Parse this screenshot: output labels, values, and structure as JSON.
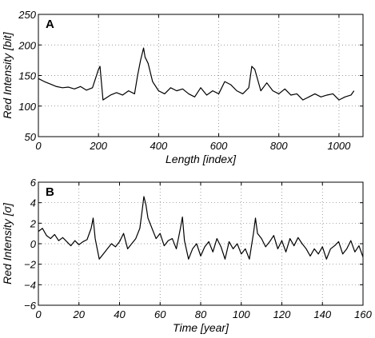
{
  "chart_data": [
    {
      "type": "line",
      "panel_label": "A",
      "xlabel": "Length [index]",
      "ylabel": "Red Intensity [bit]",
      "xlim": [
        0,
        1080
      ],
      "ylim": [
        50,
        250
      ],
      "xticks": [
        0,
        200,
        400,
        600,
        800,
        1000
      ],
      "yticks": [
        50,
        100,
        150,
        200,
        250
      ],
      "grid": true,
      "series": [
        {
          "x": [
            0,
            20,
            40,
            60,
            80,
            100,
            120,
            140,
            160,
            180,
            200,
            205,
            215,
            240,
            260,
            280,
            300,
            320,
            330,
            340,
            345,
            350,
            355,
            365,
            380,
            400,
            420,
            440,
            460,
            480,
            500,
            520,
            540,
            560,
            580,
            600,
            620,
            640,
            660,
            680,
            700,
            710,
            720,
            740,
            760,
            780,
            800,
            820,
            840,
            860,
            880,
            900,
            920,
            940,
            960,
            980,
            1000,
            1020,
            1040,
            1050
          ],
          "y": [
            145,
            140,
            136,
            132,
            130,
            131,
            128,
            132,
            126,
            130,
            160,
            165,
            110,
            118,
            122,
            118,
            125,
            120,
            150,
            175,
            185,
            195,
            180,
            170,
            140,
            125,
            120,
            130,
            125,
            128,
            120,
            115,
            130,
            118,
            125,
            120,
            140,
            135,
            125,
            120,
            130,
            165,
            160,
            125,
            138,
            125,
            120,
            128,
            118,
            120,
            110,
            115,
            120,
            115,
            118,
            120,
            110,
            115,
            118,
            125
          ]
        }
      ]
    },
    {
      "type": "line",
      "panel_label": "B",
      "xlabel": "Time [year]",
      "ylabel": "Red Intensity [σ]",
      "xlim": [
        0,
        160
      ],
      "ylim": [
        -6,
        6
      ],
      "xticks": [
        0,
        20,
        40,
        60,
        80,
        100,
        120,
        140,
        160
      ],
      "yticks": [
        -6,
        -4,
        -2,
        0,
        2,
        4,
        6
      ],
      "grid": true,
      "series": [
        {
          "x": [
            0,
            2,
            4,
            6,
            8,
            10,
            12,
            14,
            16,
            18,
            20,
            22,
            24,
            26,
            27,
            28,
            30,
            32,
            34,
            36,
            38,
            40,
            42,
            44,
            46,
            48,
            50,
            51,
            52,
            53,
            54,
            56,
            58,
            60,
            62,
            64,
            66,
            68,
            70,
            71,
            72,
            74,
            76,
            78,
            80,
            82,
            84,
            86,
            88,
            90,
            92,
            94,
            96,
            98,
            100,
            102,
            104,
            106,
            107,
            108,
            110,
            112,
            114,
            116,
            118,
            120,
            122,
            124,
            126,
            128,
            130,
            132,
            134,
            136,
            138,
            140,
            142,
            144,
            146,
            148,
            150,
            152,
            154,
            156,
            158,
            160
          ],
          "y": [
            1.2,
            1.5,
            0.8,
            0.5,
            0.9,
            0.3,
            0.6,
            0.2,
            -0.2,
            0.3,
            -0.1,
            0.2,
            0.4,
            1.5,
            2.5,
            0.5,
            -1.5,
            -1.0,
            -0.5,
            0.0,
            -0.3,
            0.2,
            1.0,
            -0.5,
            0.0,
            0.5,
            1.5,
            3.0,
            4.6,
            3.8,
            2.5,
            1.5,
            0.5,
            1.0,
            -0.2,
            0.3,
            0.5,
            -0.5,
            1.5,
            2.6,
            0.3,
            -1.5,
            -0.5,
            0.0,
            -1.2,
            -0.3,
            0.2,
            -0.8,
            0.5,
            -0.3,
            -1.5,
            0.2,
            -0.5,
            0.0,
            -1.0,
            -0.5,
            -1.5,
            1.0,
            2.5,
            1.0,
            0.5,
            -0.3,
            0.2,
            0.8,
            -0.5,
            0.3,
            -0.8,
            0.5,
            -0.2,
            0.6,
            0.0,
            -0.5,
            -1.2,
            -0.5,
            -1.0,
            -0.3,
            -1.5,
            -0.5,
            -0.2,
            0.2,
            -1.0,
            -0.5,
            0.3,
            -0.8,
            -0.2,
            -1.3
          ]
        }
      ]
    }
  ]
}
